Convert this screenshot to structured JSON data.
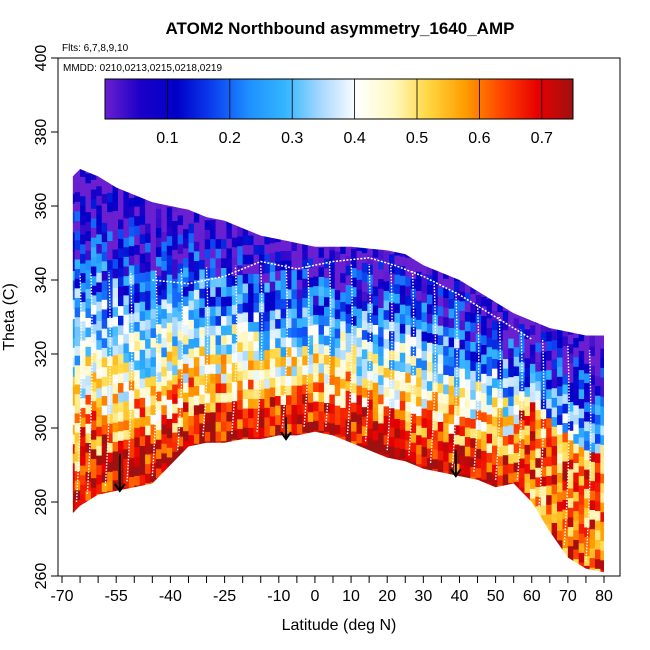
{
  "chart_data": {
    "type": "heatmap",
    "title": "ATOM2 Northbound asymmetry_1640_AMP",
    "flights_label": "Flts: 6,7,8,9,10",
    "dates_label": "MMDD: 0210,0213,0215,0218,0219",
    "xlabel": "Latitude (deg N)",
    "ylabel": "Theta (C)",
    "xlim": [
      -70,
      81
    ],
    "ylim": [
      260,
      400
    ],
    "x_tick_labels": [
      "-70",
      "-55",
      "-40",
      "-25",
      "-10",
      "0",
      "10",
      "20",
      "30",
      "40",
      "50",
      "60",
      "70",
      "80"
    ],
    "x_tick_values": [
      -70,
      -55,
      -40,
      -25,
      -10,
      0,
      10,
      20,
      30,
      40,
      50,
      60,
      70,
      80
    ],
    "x_minor_ticks": [
      -65,
      -60,
      -50,
      -45,
      -35,
      -30,
      -20,
      -15,
      -5,
      5,
      15,
      25,
      35,
      45,
      55,
      65,
      75
    ],
    "y_tick_values": [
      260,
      280,
      300,
      320,
      340,
      360,
      380,
      400
    ],
    "y_tick_labels": [
      "260",
      "280",
      "300",
      "320",
      "340",
      "360",
      "380",
      "400"
    ],
    "colorbar": {
      "min": 0.0,
      "max": 0.75,
      "tick_values": [
        0.1,
        0.2,
        0.3,
        0.4,
        0.5,
        0.6,
        0.7
      ],
      "tick_labels": [
        "0.1",
        "0.2",
        "0.3",
        "0.4",
        "0.5",
        "0.6",
        "0.7"
      ],
      "stops": [
        "#6a1fd0",
        "#1a00c8",
        "#0000c8",
        "#0c40f0",
        "#1e90ff",
        "#33b5ff",
        "#a8d8ff",
        "#ffffff",
        "#fff8c0",
        "#ffd640",
        "#ff9d00",
        "#ff4500",
        "#e80000",
        "#a01010"
      ]
    },
    "top_boundary": [
      [
        -67,
        368
      ],
      [
        -65,
        370
      ],
      [
        -60,
        368
      ],
      [
        -55,
        365
      ],
      [
        -50,
        363
      ],
      [
        -45,
        361
      ],
      [
        -40,
        360
      ],
      [
        -35,
        359
      ],
      [
        -30,
        357
      ],
      [
        -25,
        356
      ],
      [
        -20,
        354
      ],
      [
        -15,
        352
      ],
      [
        -10,
        351
      ],
      [
        -5,
        350
      ],
      [
        0,
        349
      ],
      [
        5,
        349
      ],
      [
        10,
        349
      ],
      [
        20,
        348
      ],
      [
        25,
        347
      ],
      [
        30,
        344
      ],
      [
        35,
        342
      ],
      [
        40,
        340
      ],
      [
        45,
        337
      ],
      [
        50,
        334
      ],
      [
        55,
        331
      ],
      [
        60,
        329
      ],
      [
        65,
        327
      ],
      [
        70,
        326
      ],
      [
        75,
        325
      ],
      [
        80,
        325
      ]
    ],
    "bottom_boundary": [
      [
        -67,
        277
      ],
      [
        -65,
        279
      ],
      [
        -60,
        282
      ],
      [
        -55,
        283
      ],
      [
        -50,
        284
      ],
      [
        -45,
        285
      ],
      [
        -40,
        290
      ],
      [
        -35,
        295
      ],
      [
        -30,
        296
      ],
      [
        -25,
        296
      ],
      [
        -20,
        297
      ],
      [
        -15,
        297
      ],
      [
        -10,
        298
      ],
      [
        -5,
        298
      ],
      [
        0,
        299
      ],
      [
        5,
        298
      ],
      [
        10,
        296
      ],
      [
        15,
        294
      ],
      [
        20,
        292
      ],
      [
        25,
        291
      ],
      [
        30,
        289
      ],
      [
        35,
        288
      ],
      [
        40,
        287
      ],
      [
        45,
        286
      ],
      [
        50,
        284
      ],
      [
        55,
        285
      ],
      [
        60,
        280
      ],
      [
        65,
        272
      ],
      [
        70,
        265
      ],
      [
        75,
        262
      ],
      [
        80,
        261
      ]
    ],
    "arrows": [
      {
        "lat": -54,
        "theta_top": 293,
        "theta_bottom": 283
      },
      {
        "lat": -8,
        "theta_top": 303,
        "theta_bottom": 297
      },
      {
        "lat": 39,
        "theta_top": 294,
        "theta_bottom": 287
      }
    ],
    "series_description": "Curtain of asymmetry amplitude values (0-0.75) along aircraft flights; low values (blue) aloft, high values (red) near lower boundary"
  }
}
